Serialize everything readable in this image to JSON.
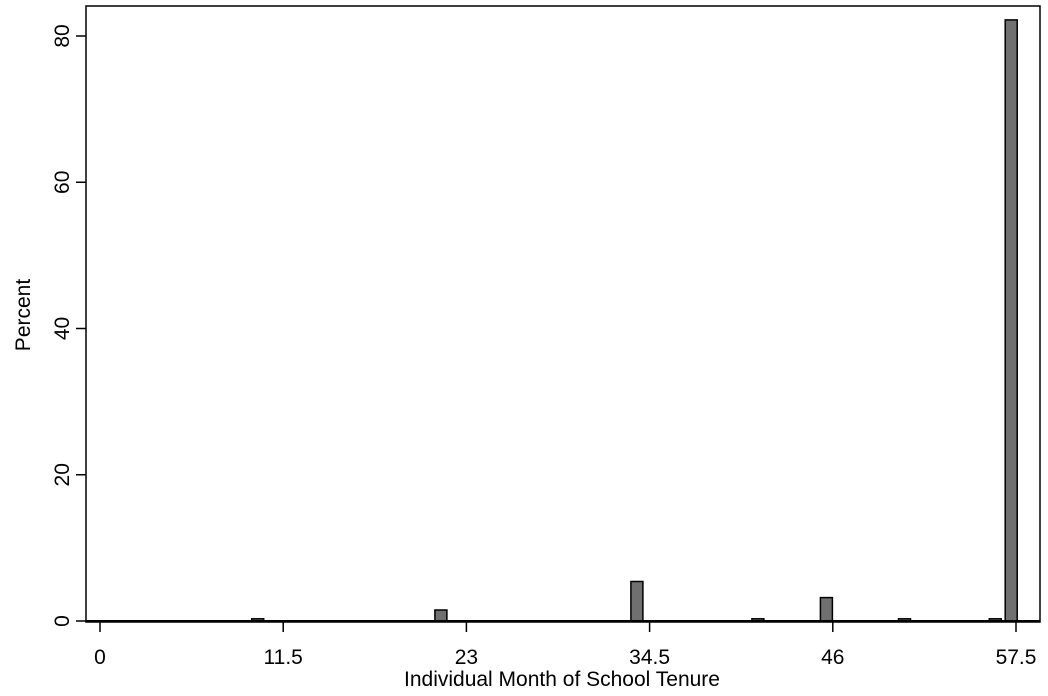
{
  "chart_data": {
    "type": "bar",
    "title": "",
    "xlabel": "Individual Month of School Tenure",
    "ylabel": "Percent",
    "xlim": [
      0,
      57.5
    ],
    "ylim": [
      0,
      84
    ],
    "x_ticks": [
      "0",
      "11.5",
      "23",
      "34.5",
      "46",
      "57.5"
    ],
    "x_tick_values": [
      0,
      11.5,
      23,
      34.5,
      46,
      57.5
    ],
    "y_ticks": [
      "0",
      "20",
      "40",
      "60",
      "80"
    ],
    "y_tick_values": [
      0,
      20,
      40,
      60,
      80
    ],
    "bar_color": "#707070",
    "bar_edge_color": "#000000",
    "grid": false,
    "bars": [
      {
        "x": 9.9,
        "value": 0.3
      },
      {
        "x": 21.4,
        "value": 1.5
      },
      {
        "x": 33.7,
        "value": 5.4
      },
      {
        "x": 41.3,
        "value": 0.3
      },
      {
        "x": 45.6,
        "value": 3.2
      },
      {
        "x": 50.5,
        "value": 0.3
      },
      {
        "x": 56.2,
        "value": 0.3
      },
      {
        "x": 57.2,
        "value": 82.2
      }
    ]
  }
}
